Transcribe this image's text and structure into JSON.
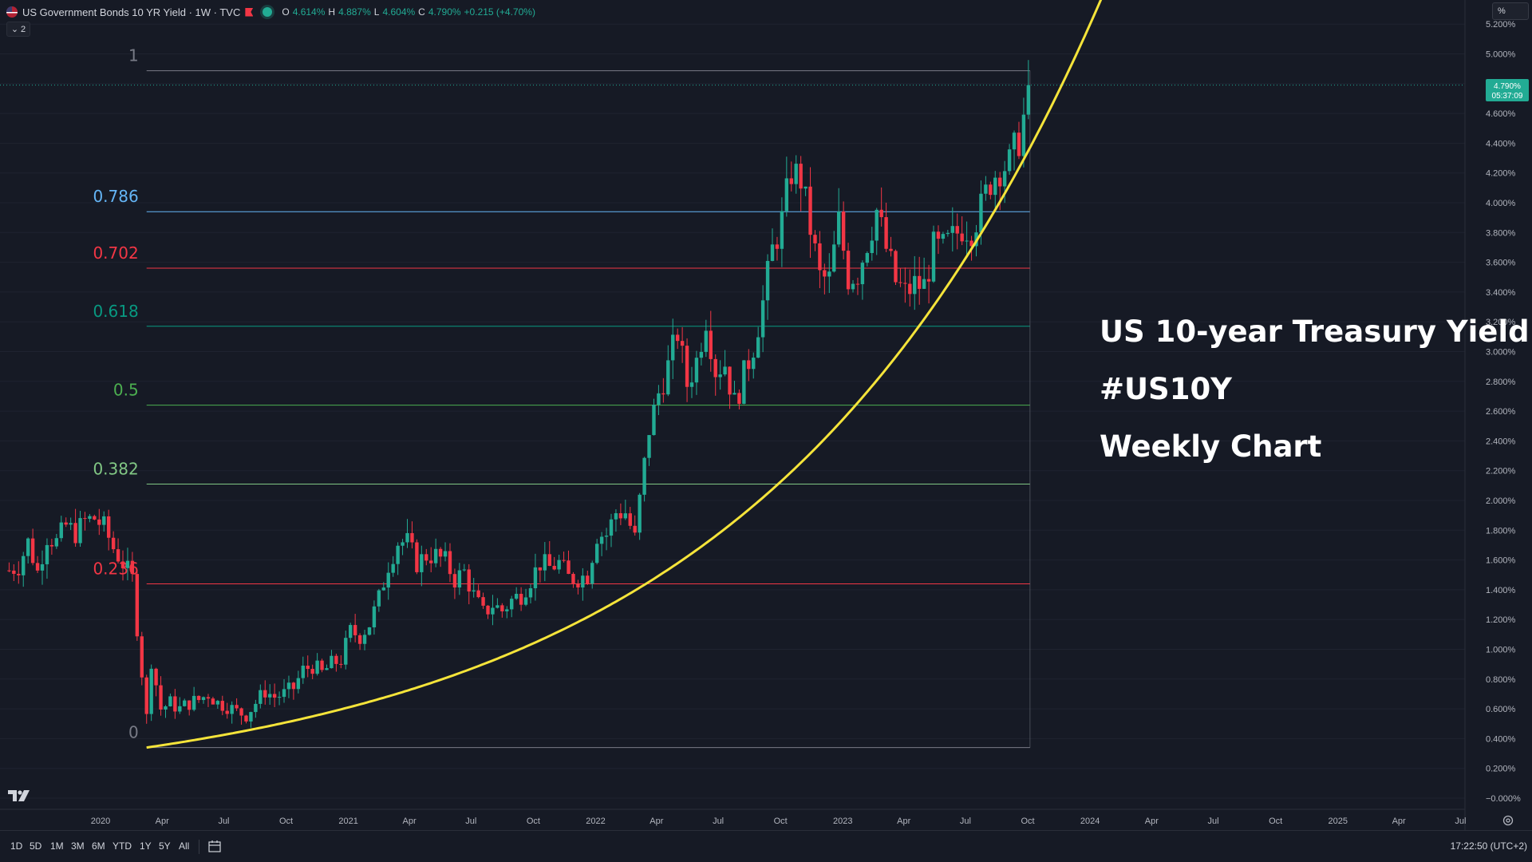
{
  "header": {
    "symbol_title": "US Government Bonds 10 YR Yield · 1W · TVC",
    "open_label": "O",
    "open": "4.614%",
    "high_label": "H",
    "high": "4.887%",
    "low_label": "L",
    "low": "4.604%",
    "close_label": "C",
    "close": "4.790%",
    "change": "+0.215 (+4.70%)",
    "indicators_count": "2"
  },
  "scale_mode": "%",
  "price_tag": {
    "price": "4.790%",
    "countdown": "05:37:09"
  },
  "overlay_text": {
    "line1": "US 10-year Treasury Yield",
    "line2": "#US10Y",
    "line3": "Weekly Chart"
  },
  "toolbar": {
    "timeframes": [
      "1D",
      "5D",
      "1M",
      "3M",
      "6M",
      "YTD",
      "1Y",
      "5Y",
      "All"
    ],
    "clock": "17:22:50 (UTC+2)"
  },
  "icons": [
    "us-flag-icon",
    "flag-icon",
    "live-dot-icon",
    "chevron-down-icon",
    "tradingview-logo-icon",
    "calendar-range-icon",
    "settings-icon"
  ],
  "colors": {
    "background": "#161a25",
    "up": "#22ab94",
    "down": "#f23645",
    "curve": "#f5e43a",
    "fib_0": "#787b86",
    "fib_0236": "#f23645",
    "fib_0382": "#81c784",
    "fib_05": "#4caf50",
    "fib_0618": "#089981",
    "fib_0702": "#f23645",
    "fib_0786": "#64b5f6",
    "fib_1": "#787b86"
  },
  "chart_data": {
    "type": "candlestick",
    "title": "US Government Bonds 10 YR Yield · 1W · TVC",
    "x_ticks": [
      "2020",
      "Apr",
      "Jul",
      "Oct",
      "2021",
      "Apr",
      "Jul",
      "Oct",
      "2022",
      "Apr",
      "Jul",
      "Oct",
      "2023",
      "Apr",
      "Jul",
      "Oct",
      "2024",
      "Apr",
      "Jul",
      "Oct",
      "2025",
      "Apr",
      "Jul"
    ],
    "y_ticks": [
      "5.200%",
      "5.000%",
      "4.800%",
      "4.600%",
      "4.400%",
      "4.200%",
      "4.000%",
      "3.800%",
      "3.600%",
      "3.400%",
      "3.200%",
      "3.000%",
      "2.800%",
      "2.600%",
      "2.400%",
      "2.200%",
      "2.000%",
      "1.800%",
      "1.600%",
      "1.400%",
      "1.200%",
      "1.000%",
      "0.800%",
      "0.600%",
      "0.400%",
      "0.200%",
      "−0.000%"
    ],
    "ylim": [
      -0.02,
      5.25
    ],
    "y_unit": "%",
    "fib_retracement": {
      "levels": [
        {
          "label": "1",
          "value": 1,
          "price": 4.887
        },
        {
          "label": "0.786",
          "value": 0.786,
          "price": 3.94
        },
        {
          "label": "0.702",
          "value": 0.702,
          "price": 3.56
        },
        {
          "label": "0.618",
          "value": 0.618,
          "price": 3.17
        },
        {
          "label": "0.5",
          "value": 0.5,
          "price": 2.64
        },
        {
          "label": "0.382",
          "value": 0.382,
          "price": 2.11
        },
        {
          "label": "0.236",
          "value": 0.236,
          "price": 1.44
        },
        {
          "label": "0",
          "value": 0,
          "price": 0.34
        }
      ],
      "start_date": "2020-03-09",
      "end_date": "2023-10-02"
    },
    "curve": {
      "type": "exponential",
      "color": "#f5e43a",
      "points": [
        [
          "2020-03-09",
          0.34
        ],
        [
          "2021-04-26",
          0.95
        ],
        [
          "2022-04-25",
          2.18
        ],
        [
          "2023-04-17",
          3.25
        ],
        [
          "2023-10-02",
          4.35
        ],
        [
          "2024-01-01",
          5.28
        ]
      ]
    },
    "ohlc_weekly_close": [
      [
        "2019-08-19",
        1.53
      ],
      [
        "2019-09-02",
        1.56
      ],
      [
        "2019-09-16",
        1.72
      ],
      [
        "2019-09-30",
        1.52
      ],
      [
        "2019-10-14",
        1.76
      ],
      [
        "2019-10-28",
        1.72
      ],
      [
        "2019-11-11",
        1.83
      ],
      [
        "2019-11-25",
        1.78
      ],
      [
        "2019-12-09",
        1.86
      ],
      [
        "2019-12-23",
        1.88
      ],
      [
        "2020-01-06",
        1.82
      ],
      [
        "2020-01-20",
        1.68
      ],
      [
        "2020-02-03",
        1.58
      ],
      [
        "2020-02-17",
        1.47
      ],
      [
        "2020-02-24",
        1.15
      ],
      [
        "2020-03-09",
        0.54
      ],
      [
        "2020-03-16",
        0.93
      ],
      [
        "2020-03-30",
        0.6
      ],
      [
        "2020-04-13",
        0.64
      ],
      [
        "2020-04-27",
        0.6
      ],
      [
        "2020-05-11",
        0.64
      ],
      [
        "2020-05-25",
        0.66
      ],
      [
        "2020-06-08",
        0.7
      ],
      [
        "2020-06-22",
        0.64
      ],
      [
        "2020-07-06",
        0.62
      ],
      [
        "2020-07-20",
        0.58
      ],
      [
        "2020-08-03",
        0.56
      ],
      [
        "2020-08-17",
        0.64
      ],
      [
        "2020-08-31",
        0.72
      ],
      [
        "2020-09-14",
        0.68
      ],
      [
        "2020-09-28",
        0.7
      ],
      [
        "2020-10-12",
        0.74
      ],
      [
        "2020-10-26",
        0.86
      ],
      [
        "2020-11-09",
        0.89
      ],
      [
        "2020-11-23",
        0.84
      ],
      [
        "2020-12-07",
        0.9
      ],
      [
        "2020-12-21",
        0.93
      ],
      [
        "2021-01-04",
        1.12
      ],
      [
        "2021-01-18",
        1.09
      ],
      [
        "2021-02-01",
        1.17
      ],
      [
        "2021-02-15",
        1.34
      ],
      [
        "2021-03-01",
        1.57
      ],
      [
        "2021-03-15",
        1.72
      ],
      [
        "2021-03-29",
        1.72
      ],
      [
        "2021-04-12",
        1.58
      ],
      [
        "2021-04-26",
        1.63
      ],
      [
        "2021-05-10",
        1.63
      ],
      [
        "2021-05-24",
        1.59
      ],
      [
        "2021-06-07",
        1.47
      ],
      [
        "2021-06-21",
        1.52
      ],
      [
        "2021-07-05",
        1.36
      ],
      [
        "2021-07-19",
        1.24
      ],
      [
        "2021-08-02",
        1.3
      ],
      [
        "2021-08-16",
        1.26
      ],
      [
        "2021-08-30",
        1.33
      ],
      [
        "2021-09-13",
        1.37
      ],
      [
        "2021-09-27",
        1.47
      ],
      [
        "2021-10-11",
        1.58
      ],
      [
        "2021-10-25",
        1.55
      ],
      [
        "2021-11-08",
        1.58
      ],
      [
        "2021-11-22",
        1.48
      ],
      [
        "2021-12-06",
        1.48
      ],
      [
        "2021-12-20",
        1.5
      ],
      [
        "2022-01-03",
        1.77
      ],
      [
        "2022-01-17",
        1.77
      ],
      [
        "2022-01-31",
        1.92
      ],
      [
        "2022-02-14",
        1.92
      ],
      [
        "2022-02-28",
        1.74
      ],
      [
        "2022-03-07",
        2.0
      ],
      [
        "2022-03-21",
        2.48
      ],
      [
        "2022-04-04",
        2.72
      ],
      [
        "2022-04-18",
        2.9
      ],
      [
        "2022-05-02",
        3.13
      ],
      [
        "2022-05-16",
        2.78
      ],
      [
        "2022-05-30",
        2.94
      ],
      [
        "2022-06-13",
        3.23
      ],
      [
        "2022-06-27",
        2.88
      ],
      [
        "2022-07-11",
        2.92
      ],
      [
        "2022-07-25",
        2.65
      ],
      [
        "2022-08-08",
        2.84
      ],
      [
        "2022-08-22",
        3.04
      ],
      [
        "2022-09-05",
        3.33
      ],
      [
        "2022-09-19",
        3.68
      ],
      [
        "2022-10-03",
        3.88
      ],
      [
        "2022-10-17",
        4.21
      ],
      [
        "2022-10-31",
        4.16
      ],
      [
        "2022-11-14",
        3.83
      ],
      [
        "2022-11-28",
        3.5
      ],
      [
        "2022-12-12",
        3.48
      ],
      [
        "2022-12-26",
        3.87
      ],
      [
        "2023-01-09",
        3.5
      ],
      [
        "2023-01-23",
        3.53
      ],
      [
        "2023-02-06",
        3.74
      ],
      [
        "2023-02-20",
        3.95
      ],
      [
        "2023-03-06",
        3.69
      ],
      [
        "2023-03-20",
        3.47
      ],
      [
        "2023-04-03",
        3.39
      ],
      [
        "2023-04-17",
        3.45
      ],
      [
        "2023-05-01",
        3.44
      ],
      [
        "2023-05-15",
        3.69
      ],
      [
        "2023-05-29",
        3.69
      ],
      [
        "2023-06-12",
        3.76
      ],
      [
        "2023-06-26",
        3.84
      ],
      [
        "2023-07-10",
        3.83
      ],
      [
        "2023-07-24",
        3.96
      ],
      [
        "2023-08-07",
        4.15
      ],
      [
        "2023-08-21",
        4.24
      ],
      [
        "2023-09-04",
        4.26
      ],
      [
        "2023-09-18",
        4.43
      ],
      [
        "2023-09-25",
        4.57
      ],
      [
        "2023-10-02",
        4.79
      ]
    ]
  }
}
